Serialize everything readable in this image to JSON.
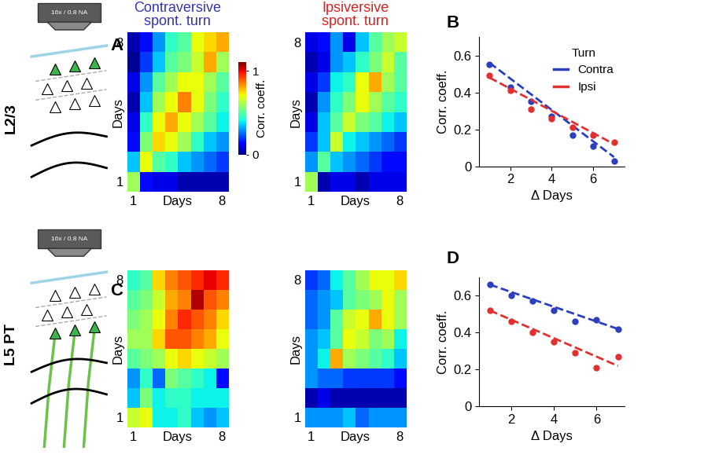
{
  "schematics": [
    {
      "label": "L2/3",
      "objective": "16x / 0.8 NA"
    },
    {
      "label": "L5 PT",
      "objective": "16x / 0.8 NA"
    }
  ],
  "chart_data": [
    {
      "type": "heatmap",
      "panel": "A",
      "title": "Contraversive\nspont. turn",
      "color": "#3535b0",
      "xlabel": "Days",
      "ylabel": "Days",
      "x": [
        1,
        2,
        3,
        4,
        5,
        6,
        7,
        8
      ],
      "y": [
        1,
        2,
        3,
        4,
        5,
        6,
        7,
        8
      ],
      "xticks": [
        1,
        8
      ],
      "yticks": [
        1,
        8
      ],
      "color_range": [
        0,
        1.1
      ],
      "colorbar": {
        "ticks": [
          0,
          1
        ],
        "label": "Corr. coeff."
      },
      "cells": [
        [
          0.6,
          0.15,
          0.1,
          0.1,
          0.05,
          0.05,
          0.05,
          0.05
        ],
        [
          0.35,
          0.7,
          0.5,
          0.45,
          0.35,
          0.3,
          0.25,
          0.2
        ],
        [
          0.15,
          0.55,
          0.75,
          0.7,
          0.6,
          0.45,
          0.35,
          0.3
        ],
        [
          0.1,
          0.45,
          0.7,
          0.8,
          0.7,
          0.6,
          0.5,
          0.4
        ],
        [
          0.05,
          0.35,
          0.6,
          0.7,
          0.85,
          0.7,
          0.55,
          0.45
        ],
        [
          0.1,
          0.3,
          0.5,
          0.6,
          0.7,
          0.7,
          0.6,
          0.5
        ],
        [
          0.02,
          0.2,
          0.35,
          0.5,
          0.55,
          0.65,
          0.8,
          0.6
        ],
        [
          0.05,
          0.15,
          0.3,
          0.45,
          0.5,
          0.7,
          0.75,
          0.8
        ]
      ]
    },
    {
      "type": "heatmap",
      "panel": "A",
      "title": "Ipsiversive\nspont. turn",
      "color": "#e02020",
      "xlabel": "Days",
      "ylabel": "Days",
      "x": [
        1,
        2,
        3,
        4,
        5,
        6,
        7,
        8
      ],
      "y": [
        1,
        2,
        3,
        4,
        5,
        6,
        7,
        8
      ],
      "xticks": [
        1,
        8
      ],
      "yticks": [
        1,
        8
      ],
      "color_range": [
        0,
        1.1
      ],
      "cells": [
        [
          0.6,
          0.05,
          0.1,
          0.1,
          0.05,
          0.1,
          0.1,
          0.1
        ],
        [
          0.3,
          0.5,
          0.35,
          0.3,
          0.25,
          0.2,
          0.15,
          0.15
        ],
        [
          0.2,
          0.35,
          0.65,
          0.4,
          0.35,
          0.3,
          0.25,
          0.2
        ],
        [
          0.1,
          0.35,
          0.5,
          0.65,
          0.55,
          0.5,
          0.4,
          0.35
        ],
        [
          0.05,
          0.3,
          0.45,
          0.55,
          0.7,
          0.6,
          0.5,
          0.45
        ],
        [
          0.1,
          0.2,
          0.4,
          0.45,
          0.7,
          0.8,
          0.6,
          0.5
        ],
        [
          0.05,
          0.1,
          0.3,
          0.35,
          0.45,
          0.55,
          0.65,
          0.5
        ],
        [
          0.1,
          0.15,
          0.3,
          0.1,
          0.35,
          0.5,
          0.6,
          0.65
        ]
      ]
    },
    {
      "type": "heatmap",
      "panel": "C",
      "xlabel": "Days",
      "ylabel": "Days",
      "x": [
        1,
        2,
        3,
        4,
        5,
        6,
        7,
        8
      ],
      "y": [
        1,
        2,
        3,
        4,
        5,
        6,
        7,
        8
      ],
      "xticks": [
        1,
        8
      ],
      "yticks": [
        1,
        8
      ],
      "color_range": [
        0,
        1.1
      ],
      "cells": [
        [
          0.65,
          0.7,
          0.4,
          0.4,
          0.45,
          0.35,
          0.3,
          0.35
        ],
        [
          0.35,
          0.55,
          0.4,
          0.45,
          0.45,
          0.4,
          0.4,
          0.4
        ],
        [
          0.3,
          0.45,
          0.25,
          0.55,
          0.5,
          0.45,
          0.4,
          0.15
        ],
        [
          0.5,
          0.55,
          0.6,
          0.7,
          0.75,
          0.7,
          0.65,
          0.6
        ],
        [
          0.6,
          0.6,
          0.75,
          0.9,
          0.9,
          0.85,
          0.8,
          0.7
        ],
        [
          0.55,
          0.6,
          0.7,
          0.85,
          0.95,
          0.9,
          0.85,
          0.75
        ],
        [
          0.5,
          0.55,
          0.65,
          0.8,
          0.85,
          1.05,
          0.9,
          0.85
        ],
        [
          0.45,
          0.5,
          0.75,
          0.85,
          0.9,
          0.95,
          1.0,
          0.95
        ]
      ]
    },
    {
      "type": "heatmap",
      "panel": "C",
      "xlabel": "Days",
      "ylabel": "Days",
      "x": [
        1,
        2,
        3,
        4,
        5,
        6,
        7,
        8
      ],
      "y": [
        1,
        2,
        3,
        4,
        5,
        6,
        7,
        8
      ],
      "xticks": [
        1,
        8
      ],
      "yticks": [
        1,
        8
      ],
      "color_range": [
        0,
        1.1
      ],
      "cells": [
        [
          0.3,
          0.3,
          0.3,
          0.35,
          0.25,
          0.3,
          0.3,
          0.3
        ],
        [
          0.05,
          0.1,
          0.05,
          0.05,
          0.05,
          0.05,
          0.05,
          0.05
        ],
        [
          0.3,
          0.25,
          0.25,
          0.2,
          0.2,
          0.2,
          0.2,
          0.15
        ],
        [
          0.3,
          0.4,
          0.8,
          0.6,
          0.55,
          0.5,
          0.45,
          0.35
        ],
        [
          0.3,
          0.35,
          0.5,
          0.7,
          0.65,
          0.55,
          0.6,
          0.4
        ],
        [
          0.25,
          0.3,
          0.5,
          0.65,
          0.7,
          0.8,
          0.7,
          0.6
        ],
        [
          0.25,
          0.3,
          0.35,
          0.5,
          0.55,
          0.6,
          0.7,
          0.6
        ],
        [
          0.2,
          0.25,
          0.4,
          0.5,
          0.6,
          0.7,
          0.7,
          0.75
        ]
      ]
    },
    {
      "type": "line",
      "panel": "B",
      "xlabel": "Δ Days",
      "ylabel": "Corr. coeff.",
      "x": [
        1,
        2,
        3,
        4,
        5,
        6,
        7
      ],
      "xlim": [
        0.5,
        7.5
      ],
      "xticks": [
        2,
        4,
        6
      ],
      "ylim": [
        0,
        0.7
      ],
      "yticks": [
        0,
        0.2,
        0.4,
        0.6
      ],
      "legend": "upper right",
      "legend_title": "Turn",
      "series": [
        {
          "name": "Contra",
          "color": "#2b3fbf",
          "marker": "o",
          "line_style": "dashed",
          "values": [
            0.55,
            0.43,
            0.35,
            0.27,
            0.17,
            0.11,
            0.03
          ],
          "fit": {
            "x": [
              1,
              7
            ],
            "values": [
              0.56,
              0.05
            ]
          }
        },
        {
          "name": "Ipsi",
          "color": "#e23030",
          "marker": "o",
          "line_style": "dashed",
          "values": [
            0.49,
            0.41,
            0.31,
            0.26,
            0.21,
            0.17,
            0.13
          ],
          "fit": {
            "x": [
              1,
              7
            ],
            "values": [
              0.48,
              0.12
            ]
          }
        }
      ]
    },
    {
      "type": "line",
      "panel": "D",
      "xlabel": "Δ Days",
      "ylabel": "Corr. coeff.",
      "x": [
        1,
        2,
        3,
        4,
        5,
        6,
        7
      ],
      "xlim": [
        0.5,
        7.3
      ],
      "xticks": [
        2,
        4,
        6
      ],
      "ylim": [
        0,
        0.7
      ],
      "yticks": [
        0,
        0.2,
        0.4,
        0.6
      ],
      "series": [
        {
          "color": "#2b3fbf",
          "marker": "o",
          "line_style": "dashed",
          "values": [
            0.66,
            0.6,
            0.57,
            0.52,
            0.46,
            0.47,
            0.42
          ],
          "fit": {
            "x": [
              1,
              7
            ],
            "values": [
              0.66,
              0.42
            ]
          }
        },
        {
          "color": "#e23030",
          "marker": "o",
          "line_style": "dashed",
          "values": [
            0.52,
            0.46,
            0.4,
            0.35,
            0.29,
            0.21,
            0.27
          ],
          "fit": {
            "x": [
              1,
              7
            ],
            "values": [
              0.52,
              0.22
            ]
          }
        }
      ]
    }
  ]
}
